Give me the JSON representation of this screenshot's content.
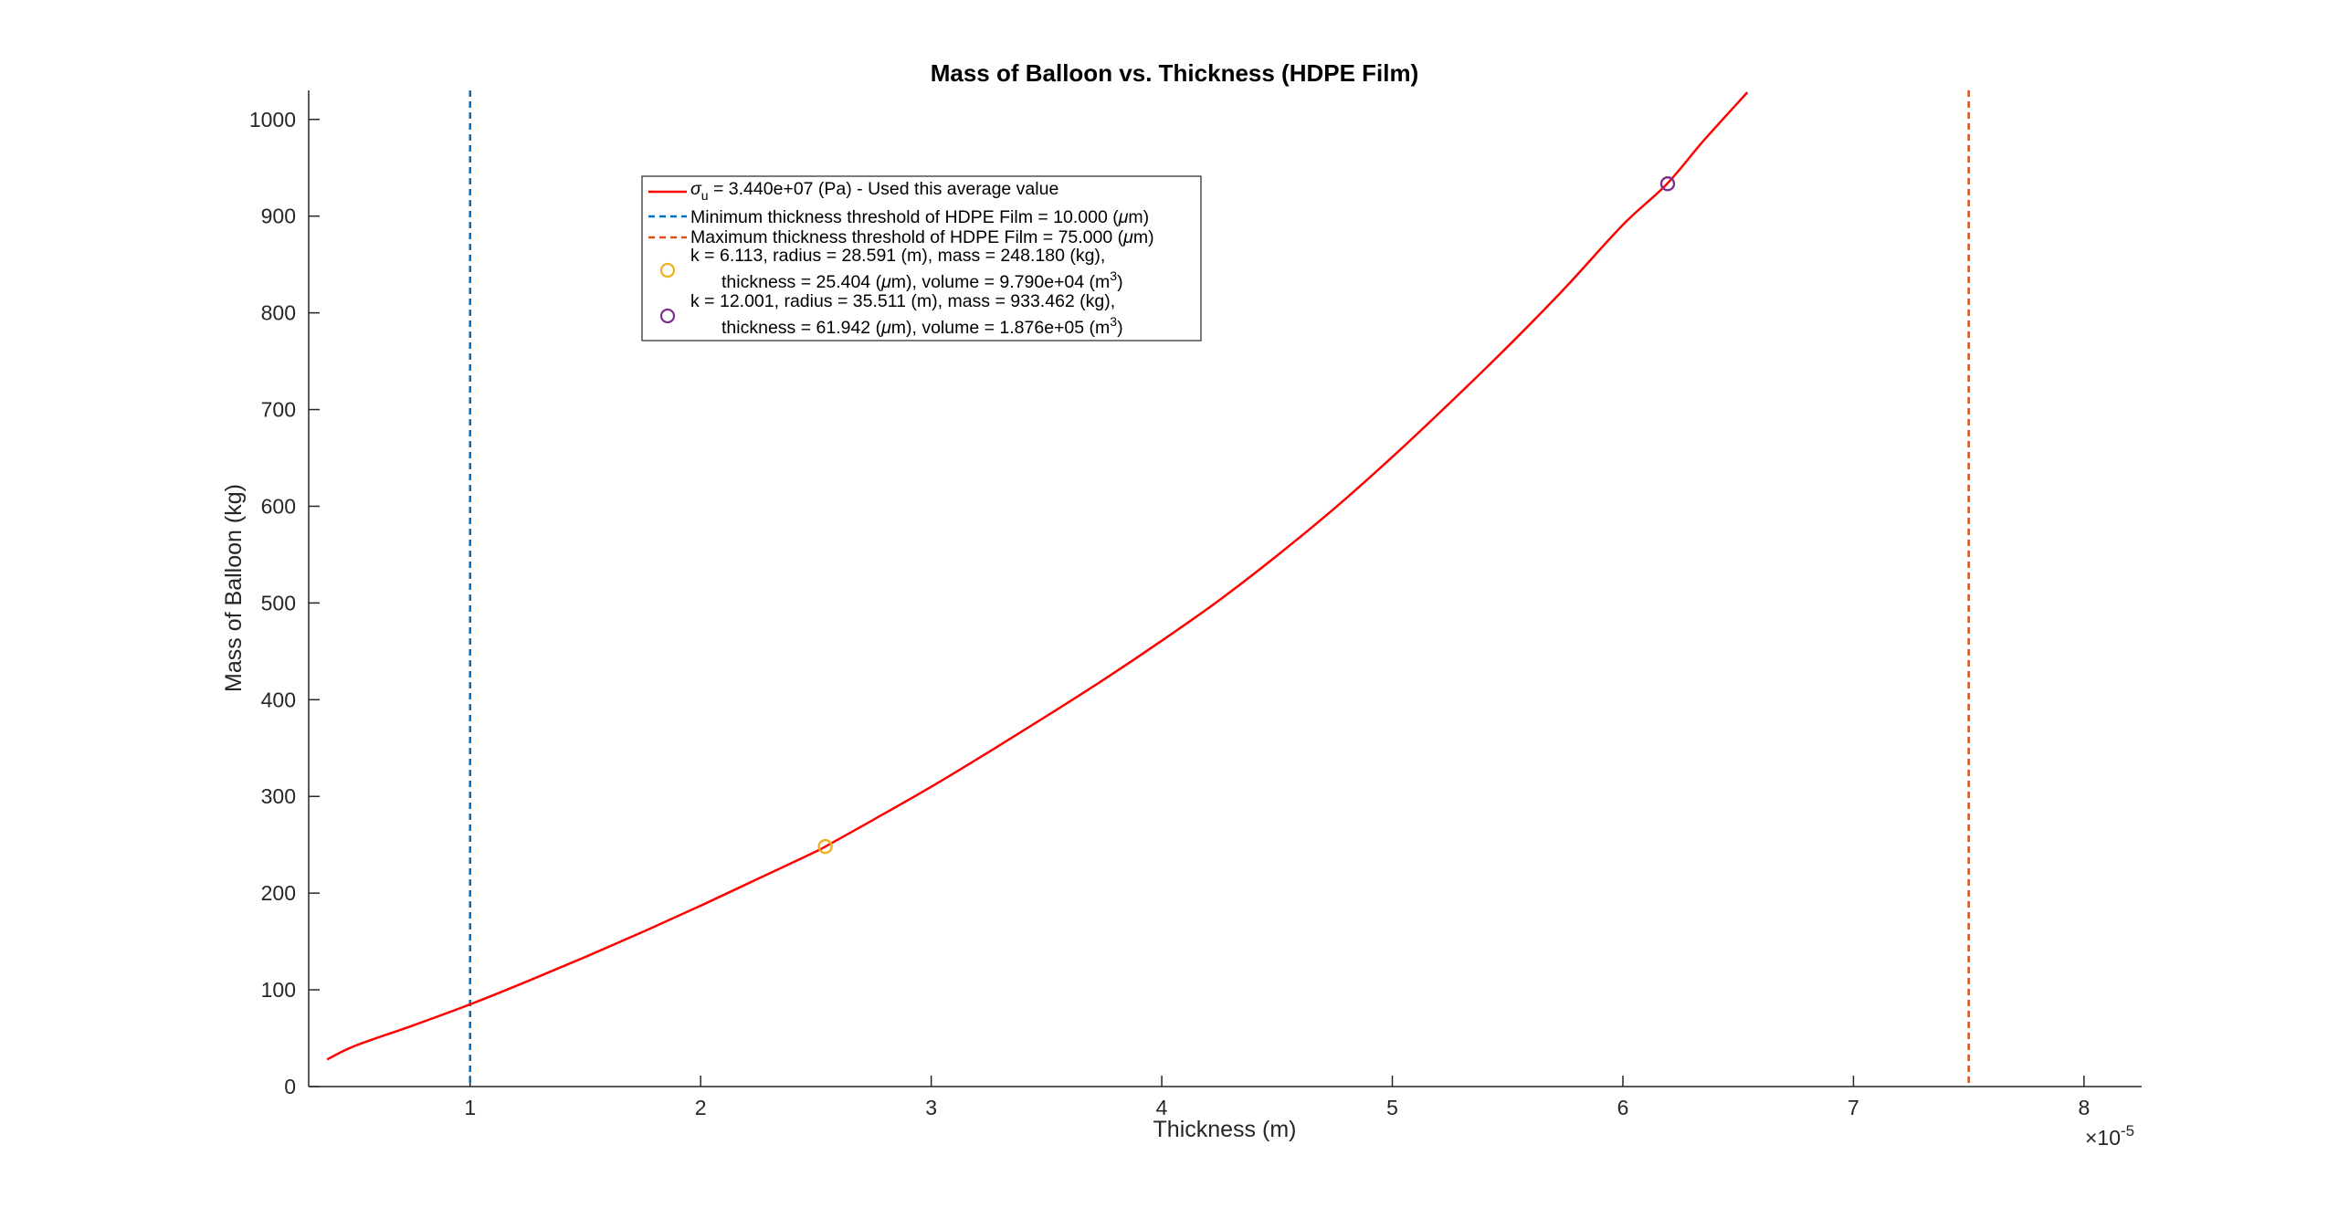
{
  "chart_data": {
    "type": "line",
    "title": "Mass of Balloon vs. Thickness (HDPE Film)",
    "xlabel": "Thickness (m)",
    "ylabel": "Mass of Balloon (kg)",
    "x_exponent_label": "×10",
    "x_exponent_power": "-5",
    "xlim": [
      3e-06,
      8.25e-05
    ],
    "ylim": [
      0,
      1030
    ],
    "x_ticks": [
      1e-05,
      2e-05,
      3e-05,
      4e-05,
      5e-05,
      6e-05,
      7e-05,
      8e-05
    ],
    "x_tick_labels": [
      "1",
      "2",
      "3",
      "4",
      "5",
      "6",
      "7",
      "8"
    ],
    "y_ticks": [
      0,
      100,
      200,
      300,
      400,
      500,
      600,
      700,
      800,
      900,
      1000
    ],
    "y_tick_labels": [
      "0",
      "100",
      "200",
      "300",
      "400",
      "500",
      "600",
      "700",
      "800",
      "900",
      "1000"
    ],
    "grid": false,
    "legend_position": "upper-left",
    "series": [
      {
        "name": "σu = 3.440e+07 (Pa) - Used this average value",
        "kind": "line",
        "color": "#ff0000",
        "x": [
          3.8e-06,
          5e-06,
          7.5e-06,
          1e-05,
          1.25e-05,
          1.5e-05,
          1.75e-05,
          2e-05,
          2.25e-05,
          2.5e-05,
          2.54e-05,
          2.75e-05,
          3e-05,
          3.25e-05,
          3.5e-05,
          3.75e-05,
          4e-05,
          4.25e-05,
          4.5e-05,
          4.75e-05,
          5e-05,
          5.25e-05,
          5.5e-05,
          5.75e-05,
          6e-05,
          6.19e-05,
          6.35e-05,
          6.54e-05
        ],
        "y": [
          28,
          42,
          63,
          85,
          109,
          134,
          160,
          187,
          215,
          243,
          248,
          276,
          310,
          346,
          383,
          421,
          461,
          503,
          549,
          598,
          651,
          707,
          765,
          826,
          891,
          933,
          978,
          1028
        ]
      },
      {
        "name": "Minimum thickness threshold of HDPE Film = 10.000 (μm)",
        "kind": "vline",
        "color": "#0072bd",
        "x": [
          1e-05
        ]
      },
      {
        "name": "Maximum thickness threshold of HDPE Film = 75.000 (μm)",
        "kind": "vline",
        "color": "#d95319",
        "x": [
          7.5e-05
        ]
      },
      {
        "name": "k = 6.113, radius = 28.591 (m), mass = 248.180 (kg), thickness = 25.404 (μm), volume = 9.790e+04 (m3)",
        "kind": "marker",
        "color": "#edb120",
        "x": [
          2.5404e-05
        ],
        "y": [
          248.18
        ]
      },
      {
        "name": "k = 12.001, radius = 35.511 (m), mass = 933.462 (kg), thickness = 61.942 (μm), volume = 1.876e+05 (m3)",
        "kind": "marker",
        "color": "#7e2f8e",
        "x": [
          6.1942e-05
        ],
        "y": [
          933.462
        ]
      }
    ],
    "legend": {
      "entry1_sigma": "σ",
      "entry1_sub": "u",
      "entry1_text": " = 3.440e+07 (Pa) - Used this average value",
      "entry2_pre": "Minimum thickness threshold of HDPE Film = 10.000 (",
      "entry2_mu": "μ",
      "entry2_post": "m)",
      "entry3_pre": "Maximum thickness threshold of HDPE Film = 75.000 (",
      "entry3_mu": "μ",
      "entry3_post": "m)",
      "entry4_line1": "k = 6.113, radius = 28.591 (m), mass = 248.180 (kg),",
      "entry4_line2_pre": "thickness = 25.404 (",
      "entry4_line2_mu": "μ",
      "entry4_line2_mid": "m), volume = 9.790e+04 (m",
      "entry4_line2_sup": "3",
      "entry4_line2_post": ")",
      "entry5_line1": "k = 12.001, radius = 35.511 (m), mass = 933.462 (kg),",
      "entry5_line2_pre": "thickness = 61.942 (",
      "entry5_line2_mu": "μ",
      "entry5_line2_mid": "m), volume = 1.876e+05 (m",
      "entry5_line2_sup": "3",
      "entry5_line2_post": ")"
    }
  }
}
